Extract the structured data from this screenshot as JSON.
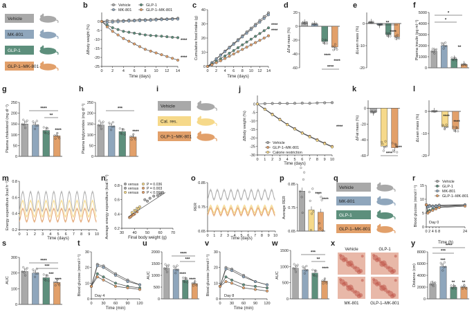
{
  "colors": {
    "vehicle": "#a9a9a9",
    "mk801": "#8fa6bc",
    "glp1": "#5d8f7c",
    "combo": "#e2a06a",
    "calres": "#f6d98a",
    "grid": "#dddddd",
    "axis": "#333333"
  },
  "panels": {
    "a": "a",
    "b": "b",
    "c": "c",
    "d": "d",
    "e": "e",
    "f": "f",
    "g": "g",
    "h": "h",
    "i": "i",
    "j": "j",
    "k": "k",
    "l": "l",
    "m": "m",
    "n": "n",
    "o": "o",
    "p": "p",
    "q": "q",
    "r": "r",
    "s": "s",
    "t": "t",
    "u": "u",
    "v": "v",
    "w": "w",
    "x": "x",
    "y": "y"
  },
  "legend_a": [
    "Vehicle",
    "MK-801",
    "GLP-1",
    "GLP-1–MK-801"
  ],
  "legend_i": [
    "Vehicle",
    "Cal. res.",
    "GLP-1–MK-801"
  ],
  "legend_q": [
    "Vehicle",
    "MK-801",
    "GLP-1",
    "GLP-1–MK-801"
  ],
  "legend_b": {
    "vehicle": "Vehicle",
    "mk801": "MK-801",
    "glp1": "GLP-1",
    "combo": "GLP-1–MK-801"
  },
  "legend_j": {
    "vehicle": "Vehicle",
    "combo": "GLP-1–MK-801",
    "calres": "Calorie restriction"
  },
  "legend_r": {
    "vehicle": "Vehicle",
    "glp1": "GLP-1",
    "mk801": "MK-801",
    "combo": "GLP-1–MK-801"
  },
  "legend_n": {
    "l1": "versus",
    "l2": "versus",
    "l3": "versus",
    "p1": "P = 0.036",
    "p2": "P = 0.003",
    "p3": "P < 0.001"
  },
  "xlabels": {
    "days": "Time (days)",
    "hours": "Time (h)",
    "min": "Time (min)",
    "fbw": "Final body weight (g)"
  },
  "ylabels": {
    "b": "ΔBody weight (%)",
    "c": "Cumulative food intake (g)",
    "d": "ΔFat mass (%)",
    "e": "ΔLean mass (%)",
    "f": "Plasma insulin (pg ml⁻¹)",
    "g": "Plasma cholesterol (mg dl⁻¹)",
    "h": "Plasma triglycerides (mg dl⁻¹)",
    "j": "ΔBody weight (%)",
    "k": "ΔFat mass (%)",
    "l": "ΔLean mass (%)",
    "m": "Energy expenditure (kcal h⁻¹)",
    "n": "Average energy expenditure (kcal h⁻¹)",
    "o": "RER",
    "p": "Average RER",
    "r": "Blood glucose (mmol l⁻¹)",
    "s": "AUC",
    "t": "Blood glucose (mmol l⁻¹)",
    "u": "AUC",
    "v": "Blood glucose (mmol l⁻¹)",
    "w": "AUC",
    "y": "Distance (cm)"
  },
  "day_labels": {
    "r": "Day 0",
    "t": "Day 4",
    "v": "Day 8"
  },
  "x_images": {
    "vehicle": "Vehicle",
    "glp1": "GLP-1",
    "mk801": "MK-801",
    "combo": "GLP-1–MK-801"
  },
  "sig": {
    "four": "****",
    "three": "***",
    "two": "**",
    "one": "*"
  },
  "chart_data": [
    {
      "panel": "b",
      "type": "line",
      "x": [
        0,
        1,
        2,
        3,
        4,
        5,
        6,
        7,
        8,
        9,
        10,
        11,
        12,
        13,
        14
      ],
      "ylim": [
        -25,
        5
      ],
      "yticks": [
        0,
        -5,
        -10,
        -15,
        -20,
        -25
      ],
      "xticks": [
        0,
        2,
        4,
        6,
        8,
        10,
        12,
        14
      ],
      "series": [
        {
          "name": "Vehicle",
          "values": [
            0,
            0.5,
            0.3,
            0.6,
            0.5,
            0.8,
            0.7,
            1,
            1,
            1.1,
            1.3,
            1.5,
            1.4,
            1.6,
            1.8
          ]
        },
        {
          "name": "MK-801",
          "values": [
            0,
            -0.5,
            -0.4,
            -0.2,
            0,
            0.2,
            0.3,
            0.4,
            0.5,
            0.6,
            0.8,
            1,
            1.1,
            1.2,
            1.3
          ]
        },
        {
          "name": "GLP-1",
          "values": [
            0,
            -2,
            -3.5,
            -4.5,
            -5.5,
            -6,
            -6.5,
            -7,
            -7.5,
            -7.8,
            -8,
            -8.2,
            -8.5,
            -8.8,
            -9
          ]
        },
        {
          "name": "GLP-1–MK-801",
          "values": [
            0,
            -3,
            -5.5,
            -7.5,
            -9.5,
            -11,
            -12.5,
            -14,
            -15.5,
            -16.5,
            -17.5,
            -18.5,
            -19.5,
            -20.5,
            -21.5
          ]
        }
      ]
    },
    {
      "panel": "c",
      "type": "line",
      "x": [
        0,
        1,
        2,
        3,
        4,
        5,
        6,
        7,
        8,
        9,
        10,
        11,
        12,
        13,
        14
      ],
      "ylim": [
        0,
        40
      ],
      "yticks": [
        0,
        10,
        20,
        30,
        40
      ],
      "xticks": [
        0,
        2,
        4,
        6,
        8,
        10,
        12,
        14
      ],
      "series": [
        {
          "name": "Vehicle",
          "values": [
            0,
            2.7,
            5.4,
            8.1,
            10.8,
            13.5,
            16.2,
            18.9,
            21.6,
            24.3,
            27,
            29.7,
            32.4,
            35.1,
            37.8
          ]
        },
        {
          "name": "MK-801",
          "values": [
            0,
            2.6,
            5.2,
            7.8,
            10.4,
            13,
            15.6,
            18.2,
            20.8,
            23.4,
            26,
            28.6,
            31.2,
            33.8,
            36.4
          ]
        },
        {
          "name": "GLP-1",
          "values": [
            0,
            1.7,
            3.6,
            5.5,
            7.4,
            9.3,
            11.2,
            13.2,
            15.2,
            17.2,
            19.2,
            21.2,
            23.2,
            25.2,
            27.2
          ]
        },
        {
          "name": "GLP-1–MK-801",
          "values": [
            0,
            1.2,
            2.6,
            4,
            5.6,
            7.2,
            8.8,
            10.4,
            12,
            13.6,
            15.2,
            16.8,
            18.4,
            20,
            21.6
          ]
        }
      ]
    },
    {
      "panel": "d",
      "type": "bar",
      "categories": [
        "Vehicle",
        "MK-801",
        "GLP-1",
        "GLP-1–MK-801"
      ],
      "values": [
        5,
        3,
        -22,
        -30
      ],
      "ylim": [
        -60,
        20
      ],
      "yticks": [
        20,
        0,
        -20,
        -40,
        -60
      ]
    },
    {
      "panel": "e",
      "type": "bar",
      "categories": [
        "Vehicle",
        "MK-801",
        "GLP-1",
        "GLP-1–MK-801"
      ],
      "values": [
        0.5,
        -0.5,
        -5,
        -6
      ],
      "ylim": [
        -20,
        5
      ],
      "yticks": [
        0,
        -10,
        -20
      ]
    },
    {
      "panel": "f",
      "type": "bar",
      "categories": [
        "Vehicle",
        "MK-801",
        "GLP-1",
        "GLP-1–MK-801"
      ],
      "values": [
        1500,
        2000,
        800,
        300
      ],
      "ylim": [
        0,
        5000
      ],
      "yticks": [
        0,
        1000,
        2000,
        3000,
        4000,
        5000
      ]
    },
    {
      "panel": "g",
      "type": "bar",
      "categories": [
        "Vehicle",
        "MK-801",
        "GLP-1",
        "GLP-1–MK-801"
      ],
      "values": [
        150,
        145,
        120,
        95
      ],
      "ylim": [
        0,
        250
      ],
      "yticks": [
        0,
        50,
        100,
        150,
        200,
        250
      ]
    },
    {
      "panel": "h",
      "type": "bar",
      "categories": [
        "Vehicle",
        "MK-801",
        "GLP-1",
        "GLP-1–MK-801"
      ],
      "values": [
        145,
        140,
        115,
        90
      ],
      "ylim": [
        0,
        250
      ],
      "yticks": [
        0,
        50,
        100,
        150,
        200,
        250
      ]
    },
    {
      "panel": "j",
      "type": "line",
      "x": [
        0,
        1,
        2,
        3,
        4,
        5,
        6,
        7,
        8,
        9,
        10
      ],
      "ylim": [
        -30,
        5
      ],
      "yticks": [
        0,
        -5,
        -10,
        -15,
        -20,
        -25,
        -30
      ],
      "xticks": [
        0,
        1,
        2,
        3,
        4,
        5,
        6,
        7,
        8,
        9,
        10
      ],
      "series": [
        {
          "name": "Vehicle",
          "values": [
            0,
            0.2,
            0.3,
            0.4,
            0.3,
            0.4,
            0.5,
            0.4,
            0.6,
            0.7,
            0.8
          ]
        },
        {
          "name": "GLP-1–MK-801",
          "values": [
            0,
            -3,
            -6,
            -9,
            -12,
            -14.5,
            -17,
            -19,
            -21,
            -23,
            -25
          ]
        },
        {
          "name": "Calorie restriction",
          "values": [
            0,
            -3.2,
            -6.3,
            -9.3,
            -12.2,
            -14.8,
            -17.2,
            -19.4,
            -21.4,
            -23.4,
            -25.3
          ]
        }
      ]
    },
    {
      "panel": "k",
      "type": "bar",
      "categories": [
        "Vehicle",
        "Cal. res.",
        "GLP-1–MK-801"
      ],
      "values": [
        -5,
        -48,
        -50
      ],
      "ylim": [
        -60,
        10
      ],
      "yticks": [
        0,
        -20,
        -40,
        -60
      ]
    },
    {
      "panel": "l",
      "type": "bar",
      "categories": [
        "Vehicle",
        "Cal. res.",
        "GLP-1–MK-801"
      ],
      "values": [
        0,
        -7,
        -8
      ],
      "ylim": [
        -20,
        5
      ],
      "yticks": [
        0,
        -10,
        -20
      ]
    },
    {
      "panel": "m",
      "type": "area",
      "x": [
        0,
        1,
        2,
        3,
        4,
        5,
        6,
        7,
        8,
        9,
        10
      ],
      "ylim": [
        0.2,
        0.8
      ],
      "yticks": [
        0.2,
        0.4,
        0.6,
        0.8
      ],
      "xticks": [
        0,
        1,
        2,
        3,
        4,
        5,
        6,
        7,
        8,
        9,
        10
      ],
      "series": [
        {
          "name": "Vehicle",
          "mean": 0.55,
          "amp": 0.12
        },
        {
          "name": "Calorie restriction",
          "mean": 0.46,
          "amp": 0.1
        },
        {
          "name": "GLP-1–MK-801",
          "mean": 0.38,
          "amp": 0.08
        }
      ]
    },
    {
      "panel": "n",
      "type": "scatter",
      "xlim": [
        30,
        70
      ],
      "ylim": [
        0.2,
        0.8
      ],
      "xticks": [
        30,
        40,
        50,
        60,
        70
      ],
      "yticks": [
        0.2,
        0.4,
        0.6,
        0.8
      ],
      "series": [
        {
          "name": "Vehicle",
          "points": [
            [
              48,
              0.6
            ],
            [
              52,
              0.62
            ],
            [
              55,
              0.65
            ],
            [
              58,
              0.66
            ],
            [
              62,
              0.7
            ],
            [
              50,
              0.58
            ],
            [
              60,
              0.68
            ]
          ]
        },
        {
          "name": "Calorie restriction",
          "points": [
            [
              38,
              0.42
            ],
            [
              40,
              0.45
            ],
            [
              42,
              0.48
            ],
            [
              44,
              0.5
            ],
            [
              41,
              0.44
            ],
            [
              43,
              0.47
            ]
          ]
        },
        {
          "name": "GLP-1–MK-801",
          "points": [
            [
              36,
              0.35
            ],
            [
              38,
              0.38
            ],
            [
              40,
              0.4
            ],
            [
              42,
              0.43
            ],
            [
              37,
              0.36
            ],
            [
              39,
              0.39
            ]
          ]
        }
      ]
    },
    {
      "panel": "o",
      "type": "area",
      "x": [
        0,
        1,
        2,
        3,
        4,
        5,
        6,
        7,
        8,
        9,
        10
      ],
      "ylim": [
        0.65,
        0.85
      ],
      "yticks": [
        0.65,
        0.75,
        0.85
      ],
      "xticks": [
        0,
        1,
        2,
        3,
        4,
        5,
        6,
        7,
        8,
        9,
        10
      ],
      "series": [
        {
          "name": "Vehicle",
          "mean": 0.8,
          "amp": 0.02
        },
        {
          "name": "Calorie restriction",
          "mean": 0.74,
          "amp": 0.015
        },
        {
          "name": "GLP-1–MK-801",
          "mean": 0.73,
          "amp": 0.015
        }
      ]
    },
    {
      "panel": "p",
      "type": "bar",
      "categories": [
        "Vehicle",
        "Cal. res.",
        "GLP-1–MK-801"
      ],
      "values": [
        0.82,
        0.74,
        0.73
      ],
      "ylim": [
        0.65,
        0.85
      ],
      "yticks": [
        0.65,
        0.75,
        0.85
      ]
    },
    {
      "panel": "r",
      "type": "line",
      "x": [
        0,
        1,
        2,
        4,
        6,
        8,
        24
      ],
      "xticks": [
        0,
        2,
        4,
        6,
        8,
        24
      ],
      "ylim": [
        0,
        15
      ],
      "yticks": [
        0,
        5,
        10,
        15
      ],
      "series": [
        {
          "name": "Vehicle",
          "values": [
            8,
            7.5,
            7.8,
            7.6,
            7.7,
            7.9,
            8
          ]
        },
        {
          "name": "GLP-1",
          "values": [
            8,
            5.5,
            6,
            6.5,
            7,
            7.2,
            7.8
          ]
        },
        {
          "name": "MK-801",
          "values": [
            8,
            7.2,
            7.4,
            7.3,
            7.5,
            7.6,
            7.9
          ]
        },
        {
          "name": "GLP-1–MK-801",
          "values": [
            8,
            5,
            5.5,
            6,
            6.5,
            7,
            7.5
          ]
        }
      ]
    },
    {
      "panel": "s",
      "type": "bar",
      "categories": [
        "Vehicle",
        "MK-801",
        "GLP-1",
        "GLP-1–MK-801"
      ],
      "values": [
        210,
        200,
        170,
        140
      ],
      "ylim": [
        0,
        300
      ],
      "yticks": [
        0,
        100,
        200,
        300
      ]
    },
    {
      "panel": "t",
      "type": "line",
      "x": [
        0,
        15,
        30,
        60,
        90,
        120
      ],
      "xticks": [
        0,
        30,
        60,
        90,
        120
      ],
      "ylim": [
        0,
        30
      ],
      "yticks": [
        0,
        10,
        20,
        30
      ],
      "series": [
        {
          "name": "Vehicle",
          "values": [
            8,
            22,
            21,
            16,
            12,
            9
          ]
        },
        {
          "name": "MK-801",
          "values": [
            8,
            21,
            20,
            15,
            11,
            9
          ]
        },
        {
          "name": "GLP-1",
          "values": [
            8,
            16,
            14,
            10,
            8,
            7
          ]
        },
        {
          "name": "GLP-1–MK-801",
          "values": [
            8,
            14,
            12,
            8,
            7,
            6
          ]
        }
      ]
    },
    {
      "panel": "u",
      "type": "bar",
      "categories": [
        "Vehicle",
        "MK-801",
        "GLP-1",
        "GLP-1–MK-801"
      ],
      "values": [
        1300,
        1250,
        800,
        650
      ],
      "ylim": [
        0,
        2000
      ],
      "yticks": [
        0,
        500,
        1000,
        1500,
        2000
      ]
    },
    {
      "panel": "v",
      "type": "line",
      "x": [
        0,
        15,
        30,
        60,
        90,
        120
      ],
      "xticks": [
        0,
        30,
        60,
        90,
        120
      ],
      "ylim": [
        0,
        30
      ],
      "yticks": [
        0,
        10,
        20,
        30
      ],
      "series": [
        {
          "name": "Vehicle",
          "values": [
            8,
            20,
            19,
            15,
            11,
            9
          ]
        },
        {
          "name": "MK-801",
          "values": [
            8,
            19,
            18,
            14,
            11,
            9
          ]
        },
        {
          "name": "GLP-1",
          "values": [
            8,
            14,
            12,
            9,
            8,
            7
          ]
        },
        {
          "name": "GLP-1–MK-801",
          "values": [
            8,
            11,
            10,
            7,
            6,
            5
          ]
        }
      ]
    },
    {
      "panel": "w",
      "type": "bar",
      "categories": [
        "Vehicle",
        "MK-801",
        "GLP-1",
        "GLP-1–MK-801"
      ],
      "values": [
        950,
        900,
        800,
        550
      ],
      "ylim": [
        0,
        1500
      ],
      "yticks": [
        0,
        500,
        1000,
        1500
      ]
    },
    {
      "panel": "y",
      "type": "bar",
      "categories": [
        "Vehicle",
        "MK-801",
        "GLP-1",
        "GLP-1–MK-801"
      ],
      "values": [
        2500,
        5500,
        2000,
        2000
      ],
      "ylim": [
        0,
        8000
      ],
      "yticks": [
        0,
        2000,
        4000,
        6000,
        8000
      ]
    }
  ]
}
